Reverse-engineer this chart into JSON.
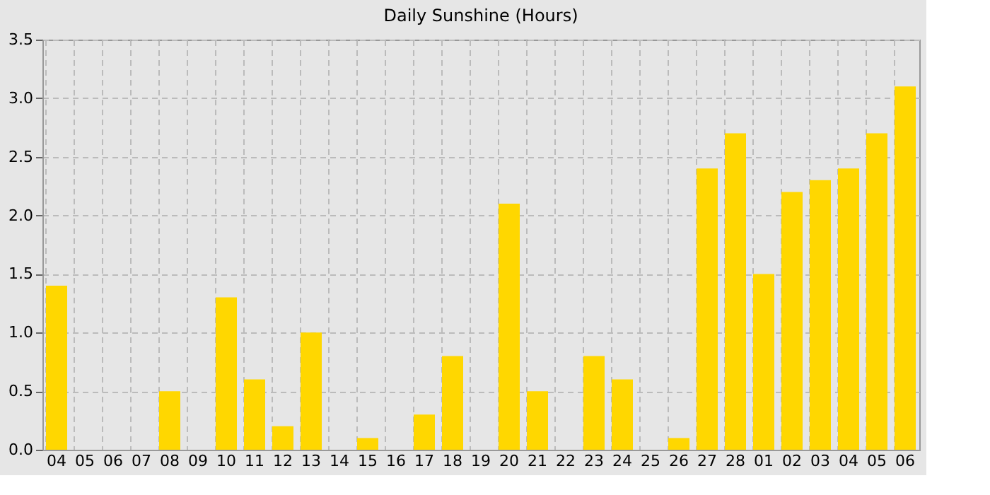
{
  "chart_data": {
    "type": "bar",
    "title": "Daily Sunshine (Hours)",
    "categories": [
      "04",
      "05",
      "06",
      "07",
      "08",
      "09",
      "10",
      "11",
      "12",
      "13",
      "14",
      "15",
      "16",
      "17",
      "18",
      "19",
      "20",
      "21",
      "22",
      "23",
      "24",
      "25",
      "26",
      "27",
      "28",
      "01",
      "02",
      "03",
      "04",
      "05",
      "06"
    ],
    "values": [
      1.4,
      0,
      0,
      0,
      0.5,
      0,
      1.3,
      0.6,
      0.2,
      1.0,
      0,
      0.1,
      0,
      0.3,
      0.8,
      0,
      2.1,
      0.5,
      0,
      0.8,
      0.6,
      0,
      0.1,
      2.4,
      2.7,
      1.5,
      2.2,
      2.3,
      2.4,
      2.7,
      3.1
    ],
    "color": "#ffd700",
    "ylim": [
      0,
      3.5
    ],
    "yticks": [
      {
        "value": 0,
        "label": "0.0"
      },
      0.5,
      {
        "value": 1,
        "label": "1.0"
      },
      1.5,
      {
        "value": 2,
        "label": "2.0"
      },
      2.5,
      {
        "value": 3,
        "label": "3.0"
      },
      3.5
    ],
    "grid": true
  }
}
